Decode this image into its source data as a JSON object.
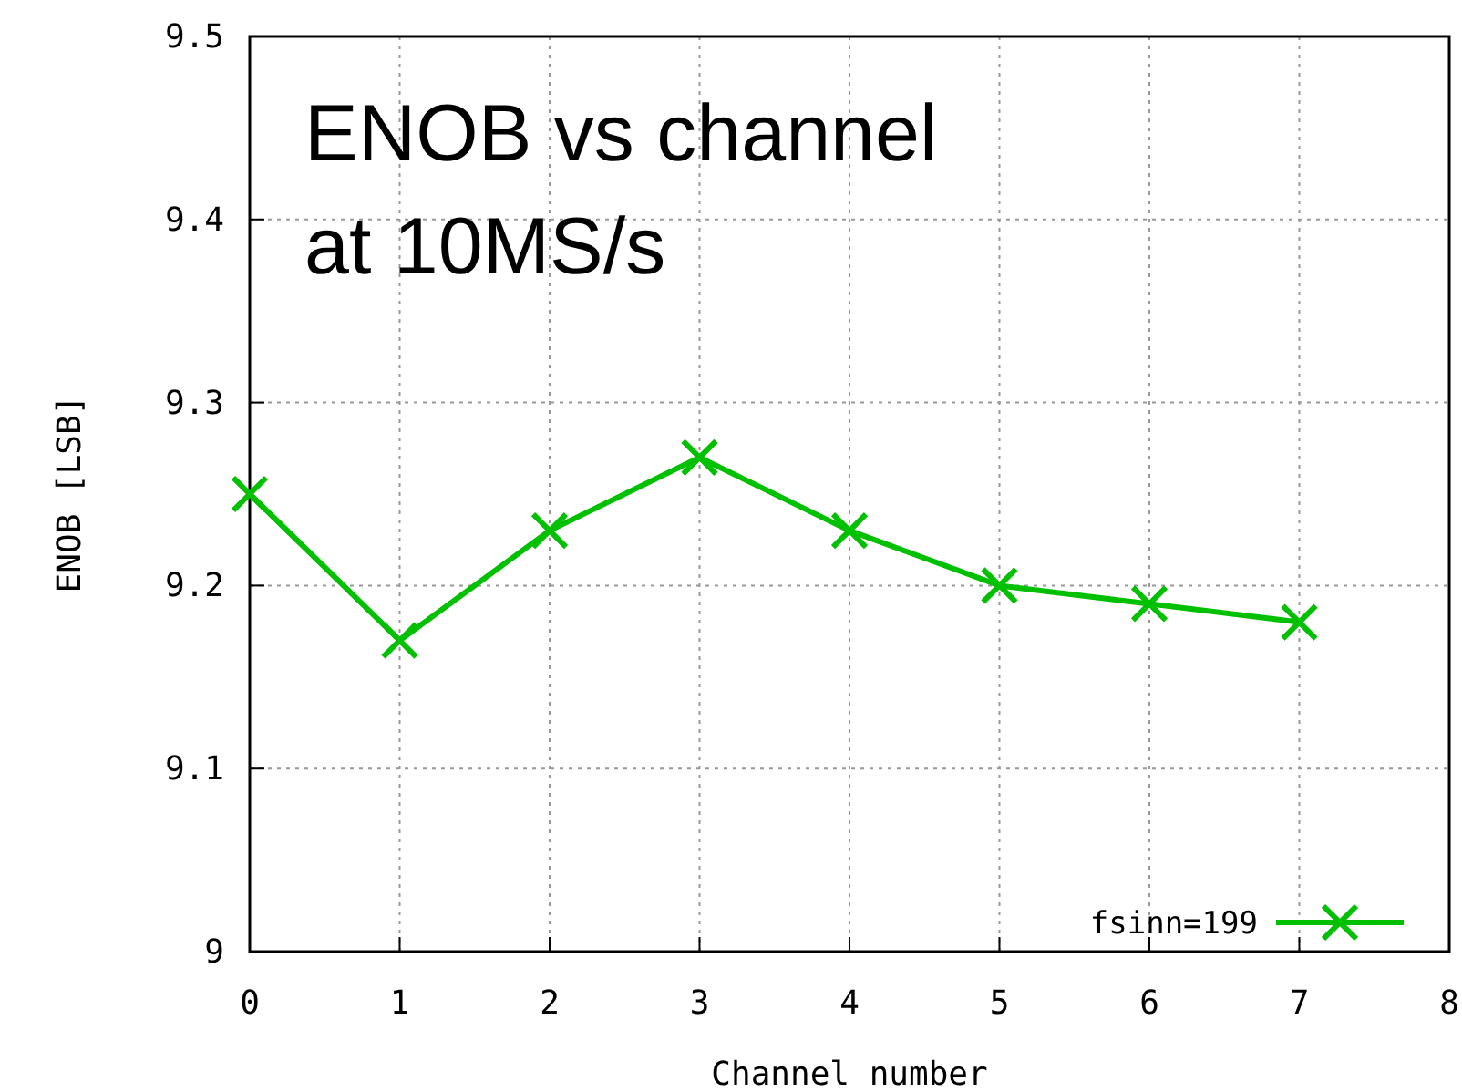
{
  "chart_data": {
    "type": "line",
    "title": "ENOB vs channel\nat 10MS/s",
    "xlabel": "Channel number",
    "ylabel": "ENOB [LSB]",
    "x": [
      0,
      1,
      2,
      3,
      4,
      5,
      6,
      7
    ],
    "series": [
      {
        "name": "fsinn=199",
        "color": "#00c000",
        "values": [
          9.25,
          9.17,
          9.23,
          9.27,
          9.23,
          9.2,
          9.19,
          9.18
        ]
      }
    ],
    "xlim": [
      0,
      8
    ],
    "xticks": [
      0,
      1,
      2,
      3,
      4,
      5,
      6,
      7,
      8
    ],
    "ylim": [
      9,
      9.5
    ],
    "yticks": [
      9,
      9.1,
      9.2,
      9.3,
      9.4,
      9.5
    ],
    "grid": true,
    "legend": "bottom right",
    "marker": "cross",
    "line_style": "solid"
  }
}
